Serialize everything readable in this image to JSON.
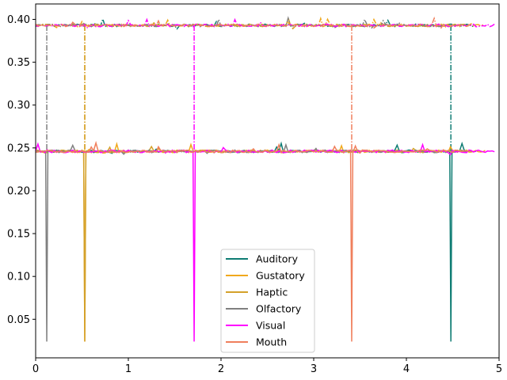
{
  "chart_data": {
    "type": "line",
    "title": "",
    "xlabel": "",
    "ylabel": "",
    "xlim": [
      0,
      5
    ],
    "ylim": [
      0.005,
      0.418
    ],
    "xticks": [
      "0",
      "1",
      "2",
      "3",
      "4",
      "5"
    ],
    "yticks": [
      "0.05",
      "0.10",
      "0.15",
      "0.20",
      "0.25",
      "0.30",
      "0.35",
      "0.40"
    ],
    "grid": false,
    "legend_position": "lower-center",
    "levels": {
      "upper": 0.393,
      "lower": 0.246,
      "dip": 0.024
    },
    "series": [
      {
        "name": "Auditory",
        "color": "#0e7c73",
        "dip_x": 4.48,
        "x_end": 4.75
      },
      {
        "name": "Gustatory",
        "color": "#f0a81c",
        "dip_x": 0.53,
        "x_end": 4.85
      },
      {
        "name": "Haptic",
        "color": "#d4a12a",
        "dip_x": 0.53,
        "x_end": 4.7
      },
      {
        "name": "Olfactory",
        "color": "#808080",
        "dip_x": 0.12,
        "x_end": 4.7
      },
      {
        "name": "Visual",
        "color": "#ff00ff",
        "dip_x": 1.71,
        "x_end": 4.95
      },
      {
        "name": "Mouth",
        "color": "#f07f5c",
        "dip_x": 3.41,
        "x_end": 4.7
      }
    ]
  }
}
